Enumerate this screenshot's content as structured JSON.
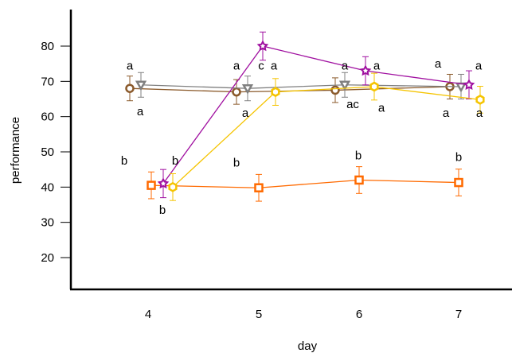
{
  "chart_data": {
    "type": "line",
    "xlabel": "day",
    "ylabel": "performance",
    "categories": [
      "4",
      "5",
      "6",
      "7"
    ],
    "yticks": [
      20,
      30,
      40,
      50,
      60,
      70,
      80
    ],
    "ylim": [
      12,
      90
    ],
    "grid": false,
    "legend": "none",
    "series": [
      {
        "color": "#8b5a2b",
        "marker": "circle",
        "values": [
          68,
          67,
          67.5,
          68.5
        ],
        "err": [
          3.5,
          3.5,
          3.5,
          3.5
        ]
      },
      {
        "color": "#808080",
        "marker": "triangle-down",
        "values": [
          69,
          68,
          69,
          68.5
        ],
        "err": [
          3.5,
          3.5,
          3.5,
          3.5
        ]
      },
      {
        "color": "#ff6a00",
        "marker": "square",
        "values": [
          40.5,
          39.8,
          42,
          41.3
        ],
        "err": [
          3.8,
          3.8,
          3.8,
          3.8
        ]
      },
      {
        "color": "#a010a0",
        "marker": "star",
        "values": [
          41,
          80,
          73,
          69
        ],
        "err": [
          4,
          4,
          4,
          4
        ]
      },
      {
        "color": "#f5c400",
        "marker": "hexagon",
        "values": [
          40,
          67,
          68.5,
          64.8
        ],
        "err": [
          3.8,
          3.8,
          3.8,
          3.8
        ]
      }
    ],
    "annotations": [
      {
        "text": "a",
        "x": "4",
        "y": 74.5
      },
      {
        "text": "a",
        "x": "4",
        "y": 61.5
      },
      {
        "text": "b",
        "x": "4",
        "y": 47.5
      },
      {
        "text": "b",
        "x": "4",
        "y": 33.5
      },
      {
        "text": "b",
        "x": "4",
        "y": 47.5
      },
      {
        "text": "a",
        "x": "5",
        "y": 74.5
      },
      {
        "text": "a",
        "x": "5",
        "y": 61
      },
      {
        "text": "c",
        "x": "5",
        "y": 74.5
      },
      {
        "text": "a",
        "x": "5",
        "y": 74.5
      },
      {
        "text": "b",
        "x": "5",
        "y": 47
      },
      {
        "text": "a",
        "x": "6",
        "y": 74.5
      },
      {
        "text": "a",
        "x": "6",
        "y": 74.5
      },
      {
        "text": "ac",
        "x": "6",
        "y": 63.5
      },
      {
        "text": "a",
        "x": "6",
        "y": 62.5
      },
      {
        "text": "b",
        "x": "6",
        "y": 49
      },
      {
        "text": "a",
        "x": "7",
        "y": 75
      },
      {
        "text": "a",
        "x": "7",
        "y": 74.5
      },
      {
        "text": "a",
        "x": "7",
        "y": 61
      },
      {
        "text": "a",
        "x": "7",
        "y": 61
      },
      {
        "text": "b",
        "x": "7",
        "y": 48.5
      }
    ]
  }
}
